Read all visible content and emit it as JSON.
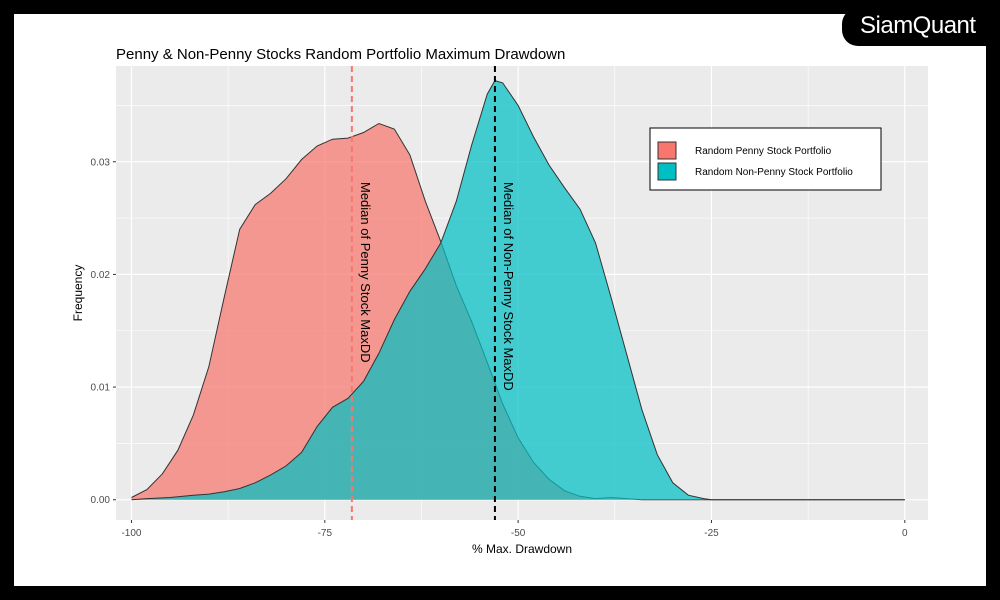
{
  "brand": {
    "logo_text": "SiamQuant"
  },
  "chart_data": {
    "type": "area",
    "title": "Penny & Non-Penny Stocks Random Portfolio Maximum Drawdown",
    "xlabel": "% Max. Drawdown",
    "ylabel": "Frequency",
    "xlim": [
      -102,
      3
    ],
    "ylim": [
      -0.0018,
      0.0385
    ],
    "x_ticks": [
      -100,
      -75,
      -50,
      -25,
      0
    ],
    "x_tick_labels": [
      "-100",
      "-75",
      "-50",
      "-25",
      "0"
    ],
    "y_ticks": [
      0,
      0.01,
      0.02,
      0.03
    ],
    "y_tick_labels": [
      "0.00",
      "0.01",
      "0.02",
      "0.03"
    ],
    "grid": true,
    "legend_position": "top-right",
    "series": [
      {
        "name": "Random Penny Stock Portfolio",
        "color": "#f8766d",
        "points": [
          [
            -100,
            0.0002
          ],
          [
            -98,
            0.0009
          ],
          [
            -96,
            0.0023
          ],
          [
            -94,
            0.0044
          ],
          [
            -92,
            0.0075
          ],
          [
            -90,
            0.0118
          ],
          [
            -88,
            0.018
          ],
          [
            -86,
            0.024
          ],
          [
            -84,
            0.0262
          ],
          [
            -82,
            0.0272
          ],
          [
            -80,
            0.0285
          ],
          [
            -78,
            0.0302
          ],
          [
            -76,
            0.0314
          ],
          [
            -74,
            0.032
          ],
          [
            -72,
            0.0321
          ],
          [
            -70,
            0.0326
          ],
          [
            -68,
            0.0334
          ],
          [
            -66,
            0.0329
          ],
          [
            -64,
            0.0306
          ],
          [
            -62,
            0.0265
          ],
          [
            -60,
            0.0229
          ],
          [
            -58,
            0.019
          ],
          [
            -56,
            0.0158
          ],
          [
            -54,
            0.0122
          ],
          [
            -52,
            0.0085
          ],
          [
            -50,
            0.0055
          ],
          [
            -48,
            0.0033
          ],
          [
            -46,
            0.0018
          ],
          [
            -44,
            0.0008
          ],
          [
            -42,
            0.0003
          ],
          [
            -40,
            0.0001
          ],
          [
            -38,
            0.0002
          ],
          [
            -36,
            0.0001
          ],
          [
            -34,
            0.0
          ],
          [
            -30,
            0.0
          ],
          [
            0,
            0.0
          ]
        ]
      },
      {
        "name": "Random Non-Penny Stock Portfolio",
        "color": "#00bfc4",
        "points": [
          [
            -100,
            0.0
          ],
          [
            -98,
            0.0001
          ],
          [
            -95,
            0.0002
          ],
          [
            -92,
            0.0004
          ],
          [
            -90,
            0.0005
          ],
          [
            -88,
            0.0007
          ],
          [
            -86,
            0.001
          ],
          [
            -84,
            0.0015
          ],
          [
            -82,
            0.0022
          ],
          [
            -80,
            0.003
          ],
          [
            -78,
            0.0042
          ],
          [
            -76,
            0.0065
          ],
          [
            -74,
            0.0082
          ],
          [
            -72,
            0.009
          ],
          [
            -70,
            0.0105
          ],
          [
            -68,
            0.013
          ],
          [
            -66,
            0.016
          ],
          [
            -64,
            0.0185
          ],
          [
            -62,
            0.0205
          ],
          [
            -60,
            0.0228
          ],
          [
            -58,
            0.0265
          ],
          [
            -56,
            0.0315
          ],
          [
            -54,
            0.036
          ],
          [
            -53,
            0.0372
          ],
          [
            -52,
            0.037
          ],
          [
            -50,
            0.035
          ],
          [
            -48,
            0.0322
          ],
          [
            -46,
            0.0297
          ],
          [
            -44,
            0.0277
          ],
          [
            -42,
            0.0258
          ],
          [
            -40,
            0.0228
          ],
          [
            -38,
            0.018
          ],
          [
            -36,
            0.013
          ],
          [
            -34,
            0.008
          ],
          [
            -32,
            0.004
          ],
          [
            -30,
            0.0015
          ],
          [
            -28,
            0.0004
          ],
          [
            -26,
            0.0001
          ],
          [
            -25,
            0.0
          ],
          [
            0,
            0.0
          ]
        ]
      }
    ],
    "vlines": [
      {
        "x": -71.5,
        "color": "#f8766d",
        "label": "Median of Penny Stock MaxDD"
      },
      {
        "x": -53,
        "color": "#000000",
        "label": "Median of Non-Penny Stock MaxDD"
      }
    ],
    "colors": {
      "panel": "#ebebeb",
      "grid": "#ffffff",
      "outline": "#333333"
    }
  }
}
